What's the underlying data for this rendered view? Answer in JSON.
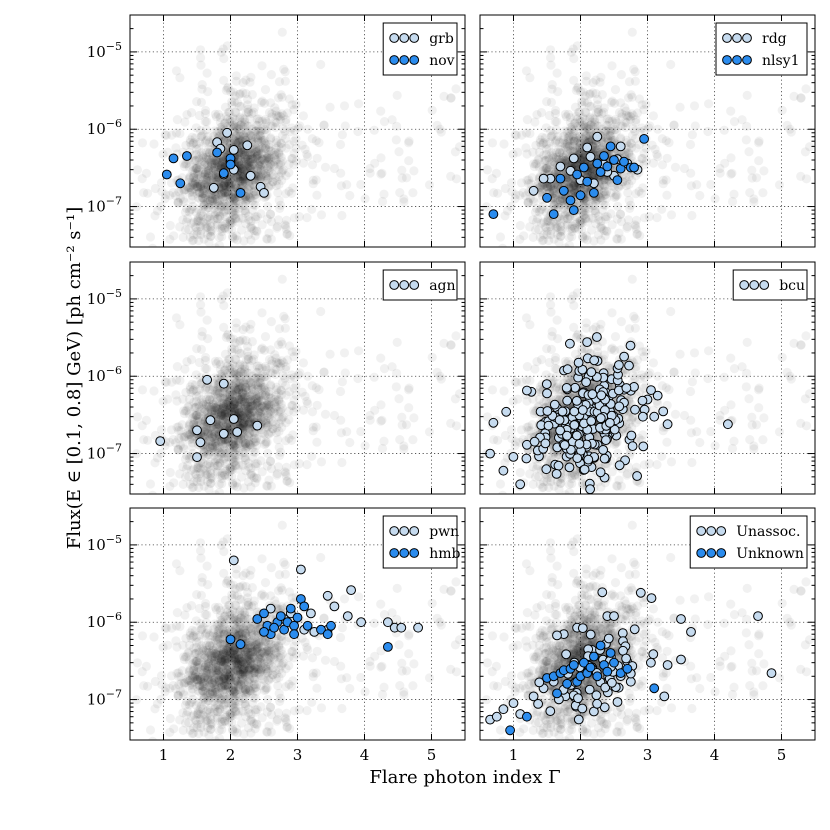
{
  "chart_data": {
    "type": "scatter",
    "xlabel": "Flare photon index Γ",
    "ylabel": "Flux(E ∈ [0.1, 0.8] GeV) [ph cm⁻² s⁻¹]",
    "xlim": [
      0.5,
      5.5
    ],
    "ylim": [
      3e-08,
      3e-05
    ],
    "yscale": "log",
    "x_ticks": [
      "1",
      "2",
      "3",
      "4",
      "5"
    ],
    "y_ticks": [
      {
        "value": 1e-07,
        "base": "10",
        "exp": "−7"
      },
      {
        "value": 1e-06,
        "base": "10",
        "exp": "−6"
      },
      {
        "value": 1e-05,
        "base": "10",
        "exp": "−5"
      }
    ],
    "grid": true,
    "legend_placement": "top-right",
    "colors": {
      "light": "#c6dbef",
      "dark": "#2b8cee",
      "background": "#000000"
    },
    "background_seed": 7,
    "panels": [
      {
        "series": [
          {
            "name": "grb",
            "color": "#c6dbef",
            "points": [
              [
                1.95,
                9e-07
              ],
              [
                1.8,
                6.8e-07
              ],
              [
                1.85,
                5.6e-07
              ],
              [
                2.05,
                5.4e-07
              ],
              [
                2.25,
                6.2e-07
              ],
              [
                2.0,
                3.8e-07
              ],
              [
                2.05,
                3e-07
              ],
              [
                2.3,
                2.5e-07
              ],
              [
                2.45,
                1.8e-07
              ],
              [
                1.75,
                1.75e-07
              ],
              [
                2.5,
                1.5e-07
              ],
              [
                1.9,
                2.6e-07
              ]
            ]
          },
          {
            "name": "nov",
            "color": "#2b8cee",
            "points": [
              [
                1.05,
                2.6e-07
              ],
              [
                1.15,
                4.2e-07
              ],
              [
                1.35,
                4.5e-07
              ],
              [
                1.25,
                2e-07
              ],
              [
                1.8,
                5e-07
              ],
              [
                2.0,
                4.2e-07
              ],
              [
                2.15,
                1.5e-07
              ],
              [
                2.0,
                3.5e-07
              ],
              [
                1.9,
                2.7e-07
              ]
            ]
          }
        ]
      },
      {
        "series": [
          {
            "name": "rdg",
            "color": "#c6dbef",
            "points": [
              [
                1.3,
                1.6e-07
              ],
              [
                1.55,
                2.3e-07
              ],
              [
                1.7,
                3.3e-07
              ],
              [
                1.9,
                4.2e-07
              ],
              [
                2.1,
                5.8e-07
              ],
              [
                2.25,
                8e-07
              ],
              [
                2.35,
                3.5e-07
              ],
              [
                2.55,
                4.1e-07
              ],
              [
                2.7,
                3.6e-07
              ],
              [
                2.85,
                3e-07
              ],
              [
                2.0,
                2.2e-07
              ],
              [
                2.2,
                2e-07
              ],
              [
                2.5,
                2.5e-07
              ],
              [
                1.85,
                2.9e-07
              ],
              [
                2.6,
                6e-07
              ],
              [
                2.4,
                2.8e-07
              ],
              [
                1.45,
                2.3e-07
              ],
              [
                2.15,
                4.4e-07
              ]
            ]
          },
          {
            "name": "nlsy1",
            "color": "#2b8cee",
            "points": [
              [
                0.7,
                8e-08
              ],
              [
                1.5,
                1.3e-07
              ],
              [
                1.6,
                8e-08
              ],
              [
                1.75,
                1.6e-07
              ],
              [
                1.85,
                1.2e-07
              ],
              [
                1.9,
                9e-08
              ],
              [
                2.0,
                1.4e-07
              ],
              [
                2.1,
                2.1e-07
              ],
              [
                2.2,
                1.5e-07
              ],
              [
                2.3,
                2.8e-07
              ],
              [
                2.4,
                3.3e-07
              ],
              [
                2.5,
                4e-07
              ],
              [
                2.6,
                3.1e-07
              ],
              [
                2.75,
                3.2e-07
              ],
              [
                2.95,
                7.5e-07
              ],
              [
                2.65,
                3.8e-07
              ],
              [
                2.45,
                6e-07
              ],
              [
                2.25,
                3.6e-07
              ],
              [
                1.95,
                2.6e-07
              ],
              [
                2.35,
                4.5e-07
              ],
              [
                2.8,
                3.2e-07
              ],
              [
                2.05,
                3.2e-07
              ],
              [
                1.7,
                2.3e-07
              ],
              [
                2.55,
                2.2e-07
              ]
            ]
          }
        ]
      },
      {
        "series": [
          {
            "name": "agn",
            "color": "#c6dbef",
            "points": [
              [
                0.95,
                1.45e-07
              ],
              [
                1.5,
                2e-07
              ],
              [
                1.55,
                1.4e-07
              ],
              [
                1.5,
                9e-08
              ],
              [
                1.7,
                2.7e-07
              ],
              [
                1.65,
                9e-07
              ],
              [
                1.9,
                8e-07
              ],
              [
                1.9,
                1.8e-07
              ],
              [
                2.1,
                1.9e-07
              ],
              [
                2.4,
                2.3e-07
              ],
              [
                2.05,
                2.8e-07
              ]
            ]
          }
        ]
      },
      {
        "series": [
          {
            "name": "bcu",
            "color": "#c6dbef",
            "generated": {
              "count": 230,
              "center": [
                2.15,
                2.5e-07
              ],
              "spread": [
                0.42,
                0.36
              ],
              "seed": 3
            },
            "points": [
              [
                0.65,
                1e-07
              ],
              [
                0.7,
                2.5e-07
              ],
              [
                0.85,
                6e-08
              ],
              [
                1.1,
                4e-08
              ],
              [
                1.2,
                1.3e-07
              ],
              [
                3.0,
                5e-07
              ],
              [
                3.1,
                3e-07
              ],
              [
                3.3,
                2.4e-07
              ],
              [
                4.2,
                2.4e-07
              ],
              [
                2.75,
                6.5e-07
              ],
              [
                1.5,
                6e-07
              ]
            ]
          }
        ]
      },
      {
        "series": [
          {
            "name": "pwn",
            "color": "#c6dbef",
            "points": [
              [
                2.05,
                6.3e-06
              ],
              [
                3.05,
                4.8e-06
              ],
              [
                3.8,
                2.6e-06
              ],
              [
                3.45,
                2.2e-06
              ],
              [
                3.55,
                1.6e-06
              ],
              [
                3.2,
                1.3e-06
              ],
              [
                3.75,
                1.2e-06
              ],
              [
                3.95,
                1e-06
              ],
              [
                4.35,
                1e-06
              ],
              [
                4.45,
                8.5e-07
              ],
              [
                4.55,
                8.5e-07
              ],
              [
                4.8,
                8.5e-07
              ],
              [
                3.1,
                8e-07
              ],
              [
                3.45,
                8e-07
              ],
              [
                3.25,
                7.5e-07
              ],
              [
                2.9,
                1.3e-06
              ],
              [
                2.6,
                1.5e-06
              ],
              [
                2.8,
                1.1e-06
              ]
            ]
          },
          {
            "name": "hmb",
            "color": "#2b8cee",
            "points": [
              [
                2.0,
                6e-07
              ],
              [
                2.15,
                5.2e-07
              ],
              [
                2.4,
                1.1e-06
              ],
              [
                2.5,
                1.3e-06
              ],
              [
                2.55,
                9e-07
              ],
              [
                2.6,
                7e-07
              ],
              [
                2.7,
                1e-06
              ],
              [
                2.75,
                1.2e-06
              ],
              [
                2.8,
                8e-07
              ],
              [
                2.85,
                1e-06
              ],
              [
                2.9,
                1.5e-06
              ],
              [
                2.95,
                9e-07
              ],
              [
                3.0,
                1.15e-06
              ],
              [
                3.05,
                2e-06
              ],
              [
                3.15,
                9e-07
              ],
              [
                3.35,
                8e-07
              ],
              [
                3.45,
                7e-07
              ],
              [
                3.5,
                9e-07
              ],
              [
                4.35,
                4.8e-07
              ],
              [
                2.65,
                8.5e-07
              ],
              [
                2.5,
                7.5e-07
              ],
              [
                2.95,
                7e-07
              ],
              [
                3.1,
                1.6e-06
              ]
            ]
          }
        ]
      },
      {
        "series": [
          {
            "name": "Unassoc.",
            "color": "#c6dbef",
            "generated": {
              "count": 70,
              "center": [
                2.25,
                2.6e-07
              ],
              "spread": [
                0.35,
                0.35
              ],
              "seed": 11
            },
            "points": [
              [
                0.65,
                5.5e-08
              ],
              [
                0.75,
                6e-08
              ],
              [
                0.85,
                7.5e-08
              ],
              [
                1.0,
                9e-08
              ],
              [
                1.1,
                6.5e-08
              ],
              [
                1.3,
                1.1e-07
              ],
              [
                1.45,
                1.4e-07
              ],
              [
                1.6,
                1.7e-07
              ],
              [
                2.4,
                1.2e-06
              ],
              [
                2.5,
                1.2e-06
              ],
              [
                2.9,
                2.4e-06
              ],
              [
                3.05,
                3e-07
              ],
              [
                3.3,
                2.8e-07
              ],
              [
                3.5,
                3.3e-07
              ],
              [
                3.5,
                1.1e-06
              ],
              [
                3.65,
                7.5e-07
              ],
              [
                4.65,
                1.2e-06
              ],
              [
                4.85,
                2.2e-07
              ],
              [
                3.25,
                1.1e-07
              ],
              [
                2.2,
                7e-08
              ],
              [
                2.75,
                1.7e-07
              ],
              [
                1.95,
                8.5e-07
              ]
            ]
          },
          {
            "name": "Unknown",
            "color": "#2b8cee",
            "points": [
              [
                0.95,
                4e-08
              ],
              [
                1.2,
                6e-08
              ],
              [
                1.5,
                1.9e-07
              ],
              [
                1.6,
                2e-07
              ],
              [
                1.7,
                2.2e-07
              ],
              [
                1.75,
                2.4e-07
              ],
              [
                1.8,
                1.6e-07
              ],
              [
                1.85,
                2.5e-07
              ],
              [
                1.9,
                2.8e-07
              ],
              [
                1.95,
                1.7e-07
              ],
              [
                2.0,
                2e-07
              ],
              [
                2.05,
                3e-07
              ],
              [
                2.1,
                2.2e-07
              ],
              [
                2.15,
                2.6e-07
              ],
              [
                2.2,
                3.6e-07
              ],
              [
                2.25,
                2e-07
              ],
              [
                2.3,
                5e-07
              ],
              [
                2.35,
                2.8e-07
              ],
              [
                2.4,
                2.3e-07
              ],
              [
                2.5,
                3e-07
              ],
              [
                2.6,
                2.2e-07
              ],
              [
                2.7,
                2.5e-07
              ],
              [
                3.1,
                1.4e-07
              ],
              [
                1.65,
                1.2e-07
              ],
              [
                2.45,
                4e-07
              ]
            ]
          }
        ]
      }
    ]
  }
}
